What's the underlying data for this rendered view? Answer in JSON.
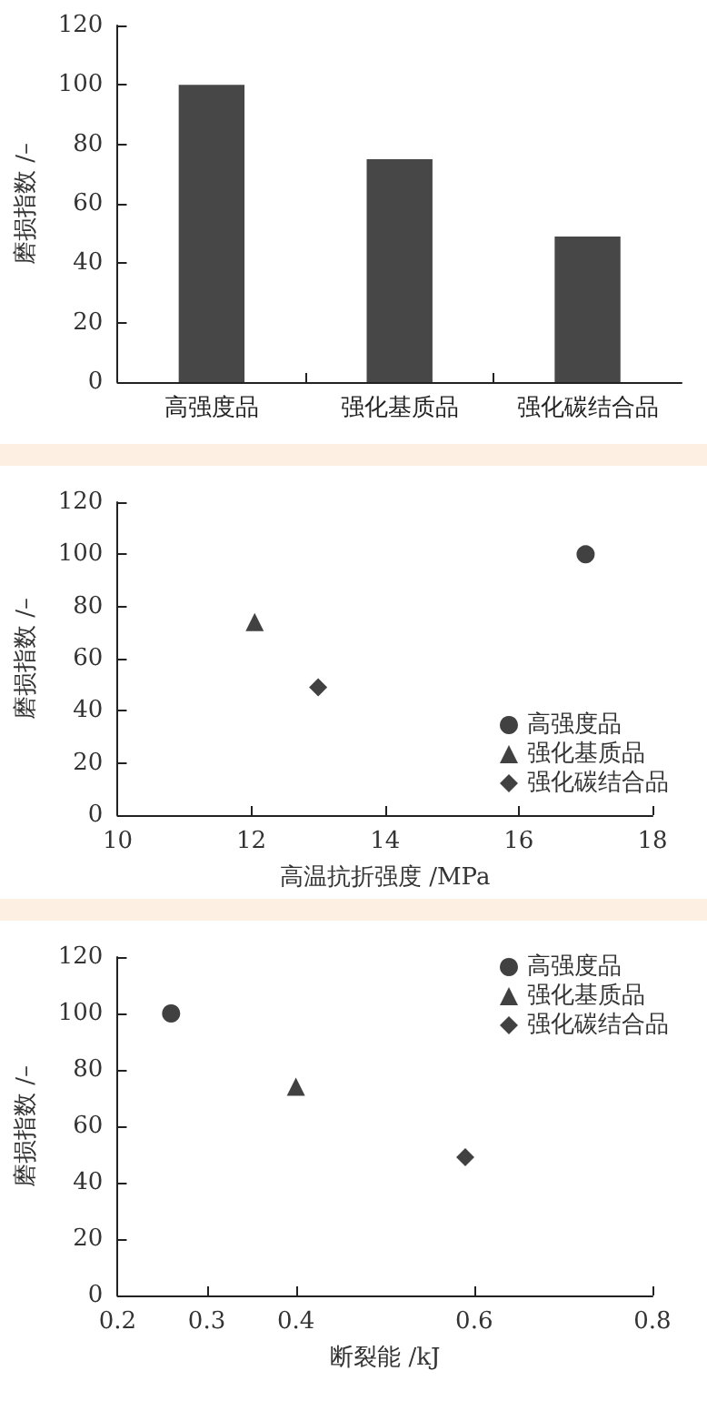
{
  "chart_data": [
    {
      "type": "bar",
      "ylabel": "磨损指数 /–",
      "categories": [
        "高强度品",
        "强化基质品",
        "强化碳结合品"
      ],
      "values": [
        100,
        75,
        49
      ],
      "color": "#474747",
      "ylim": [
        0,
        120
      ],
      "yticks": [
        0,
        20,
        40,
        60,
        80,
        100,
        120
      ],
      "grid": false
    },
    {
      "type": "scatter",
      "xlabel": "高温抗折强度 /MPa",
      "ylabel": "磨损指数 /–",
      "xlim": [
        10,
        18
      ],
      "xticks": [
        10,
        12,
        14,
        16,
        18
      ],
      "ylim": [
        0,
        120
      ],
      "yticks": [
        0,
        20,
        40,
        60,
        80,
        100,
        120
      ],
      "grid": false,
      "legend": "bottom right",
      "series": [
        {
          "name": "高强度品",
          "color": "#111111",
          "marker": "circle",
          "x": [
            17
          ],
          "values": [
            100
          ]
        },
        {
          "name": "强化基质品",
          "color": "#111111",
          "marker": "triangle",
          "x": [
            12.05
          ],
          "values": [
            74
          ]
        },
        {
          "name": "强化碳结合品",
          "color": "#111111",
          "marker": "diamond",
          "x": [
            13
          ],
          "values": [
            49
          ]
        }
      ]
    },
    {
      "type": "scatter",
      "xlabel": "断裂能 /kJ",
      "ylabel": "磨损指数 /–",
      "xlim": [
        0.2,
        0.8
      ],
      "xticks": [
        0.2,
        0.3,
        0.4,
        0.6,
        0.8
      ],
      "ylim": [
        0,
        120
      ],
      "yticks": [
        0,
        20,
        40,
        60,
        80,
        100,
        120
      ],
      "grid": false,
      "legend": "top right",
      "series": [
        {
          "name": "高强度品",
          "color": "#111111",
          "marker": "circle",
          "x": [
            0.26
          ],
          "values": [
            100
          ]
        },
        {
          "name": "强化基质品",
          "color": "#111111",
          "marker": "triangle",
          "x": [
            0.4
          ],
          "values": [
            74
          ]
        },
        {
          "name": "强化碳结合品",
          "color": "#111111",
          "marker": "diamond",
          "x": [
            0.59
          ],
          "values": [
            49
          ]
        }
      ]
    }
  ]
}
